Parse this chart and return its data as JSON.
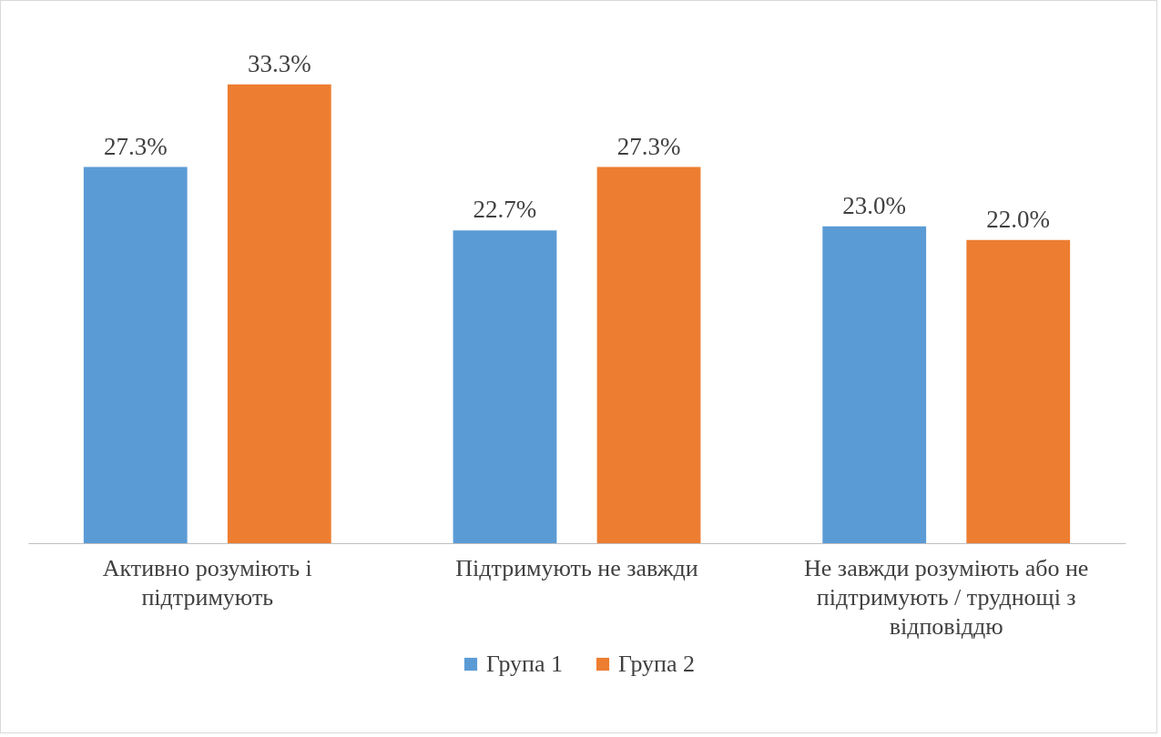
{
  "chart_data": {
    "type": "bar",
    "categories": [
      "Активно розуміють і підтримують",
      "Підтримують не завжди",
      "Не завжди розуміють або не підтримують / труднощі з відповіддю"
    ],
    "series": [
      {
        "name": "Група 1",
        "color": "#5b9bd5",
        "values": [
          27.3,
          22.7,
          23.0
        ],
        "value_labels": [
          "27.3%",
          "22.7%",
          "23.0%"
        ]
      },
      {
        "name": "Група 2",
        "color": "#ed7d31",
        "values": [
          33.3,
          27.3,
          22.0
        ],
        "value_labels": [
          "33.3%",
          "27.3%",
          "22.0%"
        ]
      }
    ],
    "tick_labels": "x",
    "grid": false,
    "legend": "bottom"
  }
}
